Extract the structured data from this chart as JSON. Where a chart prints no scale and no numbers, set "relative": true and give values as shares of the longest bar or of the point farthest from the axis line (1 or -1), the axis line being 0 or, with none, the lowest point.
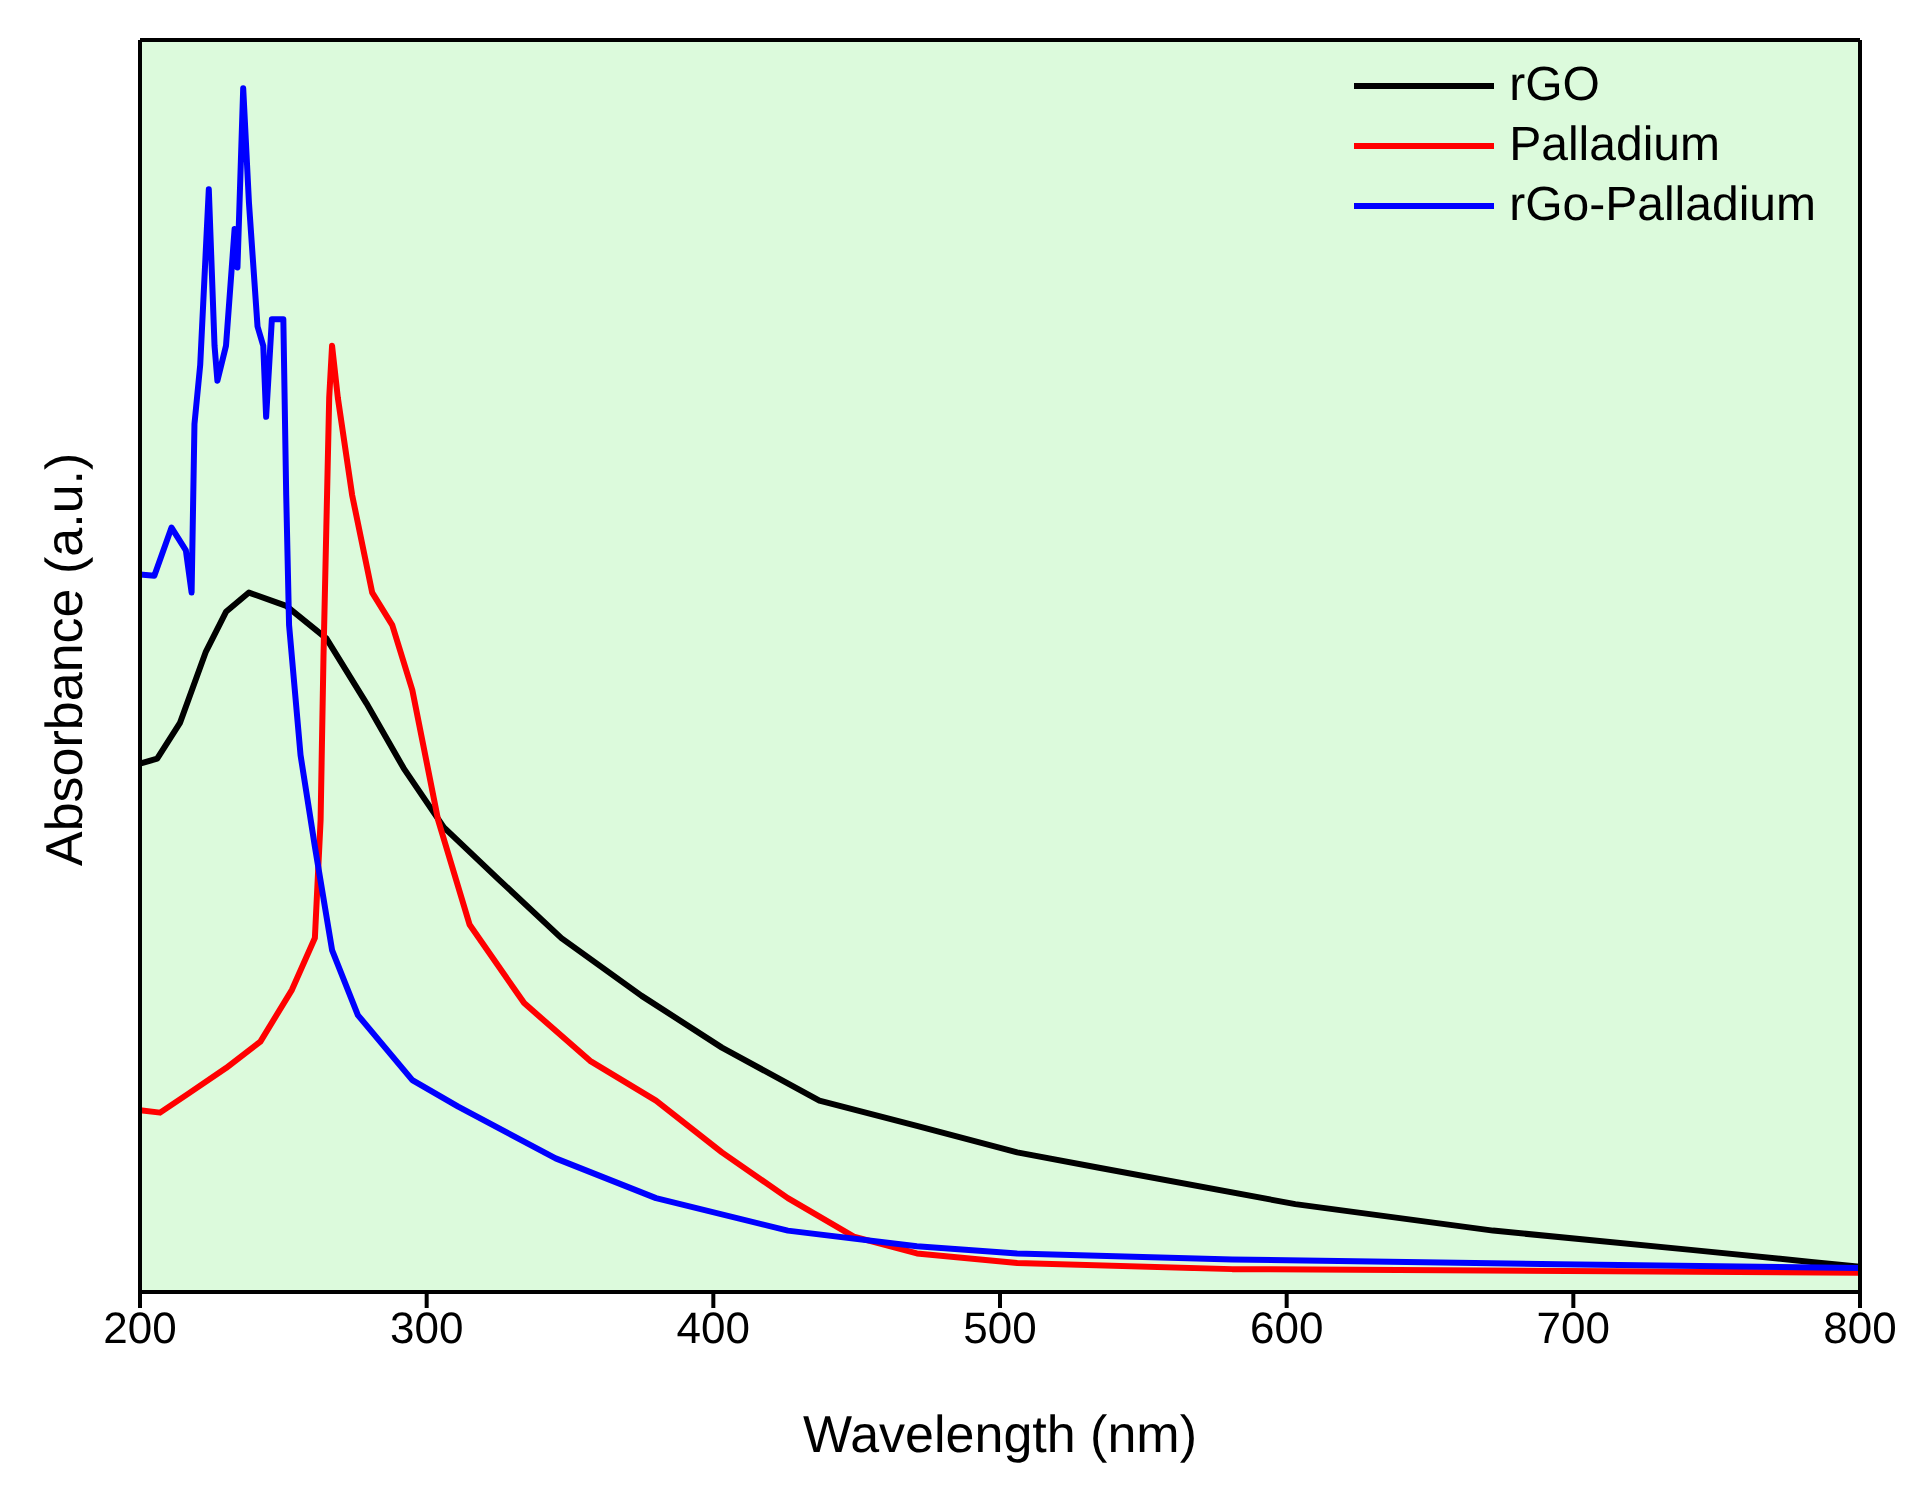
{
  "chart_data": {
    "type": "line",
    "xlabel": "Wavelength (nm)",
    "ylabel": "Absorbance (a.u.)",
    "relative": true,
    "xlim": [
      200,
      800
    ],
    "xticks": [
      200,
      300,
      400,
      500,
      600,
      700,
      800
    ],
    "grid": false,
    "legend": "top right",
    "series": [
      {
        "name": "rGO",
        "color": "#000000",
        "x": [
          200,
          206,
          214,
          223,
          230,
          238,
          251,
          265,
          279,
          292,
          306,
          325,
          347,
          375,
          403,
          437,
          471,
          506,
          535,
          603,
          672,
          741,
          783,
          800
        ],
        "values": [
          0.439,
          0.443,
          0.473,
          0.532,
          0.565,
          0.581,
          0.57,
          0.543,
          0.489,
          0.435,
          0.386,
          0.343,
          0.294,
          0.246,
          0.203,
          0.159,
          0.138,
          0.116,
          0.103,
          0.073,
          0.051,
          0.035,
          0.025,
          0.021
        ]
      },
      {
        "name": "Palladium",
        "color": "#ff0000",
        "x": [
          200,
          207,
          217,
          230,
          242,
          253,
          261,
          263,
          264,
          265,
          266,
          267,
          269,
          274,
          281,
          288,
          295,
          304,
          315,
          334,
          357,
          380,
          403,
          426,
          449,
          471,
          506,
          581,
          800
        ],
        "values": [
          0.151,
          0.149,
          0.165,
          0.186,
          0.208,
          0.251,
          0.294,
          0.392,
          0.527,
          0.635,
          0.743,
          0.786,
          0.743,
          0.662,
          0.581,
          0.554,
          0.5,
          0.392,
          0.305,
          0.24,
          0.192,
          0.159,
          0.116,
          0.078,
          0.046,
          0.032,
          0.024,
          0.019,
          0.016
        ]
      },
      {
        "name": "rGo-Palladium",
        "color": "#0000ff",
        "x": [
          200,
          205,
          211,
          216,
          218,
          219,
          221,
          224,
          226,
          227,
          230,
          233,
          234,
          236,
          238,
          241,
          243,
          244,
          246,
          250,
          251,
          252,
          256,
          261,
          267,
          276,
          295,
          311,
          345,
          380,
          426,
          471,
          506,
          581,
          695,
          800
        ],
        "values": [
          0.596,
          0.595,
          0.635,
          0.616,
          0.581,
          0.721,
          0.77,
          0.916,
          0.786,
          0.757,
          0.786,
          0.883,
          0.851,
          1,
          0.905,
          0.802,
          0.786,
          0.727,
          0.808,
          0.808,
          0.662,
          0.554,
          0.446,
          0.37,
          0.284,
          0.23,
          0.176,
          0.154,
          0.111,
          0.078,
          0.051,
          0.038,
          0.032,
          0.027,
          0.023,
          0.02
        ]
      }
    ]
  }
}
